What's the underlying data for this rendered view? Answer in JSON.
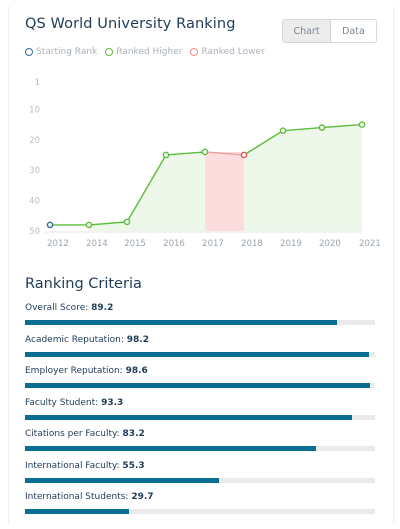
{
  "header": {
    "title": "QS World University Ranking"
  },
  "view_toggle": {
    "chart_label": "Chart",
    "data_label": "Data",
    "selected": "Chart"
  },
  "legend": [
    {
      "label": "Starting Rank",
      "color": "#2b6e8f"
    },
    {
      "label": "Ranked Higher",
      "color": "#5bbd3a"
    },
    {
      "label": "Ranked Lower",
      "color": "#f08a8a"
    }
  ],
  "chart_data": {
    "type": "line",
    "x": [
      "2012",
      "2014",
      "2015",
      "2016",
      "2017",
      "2018",
      "2019",
      "2020",
      "2021"
    ],
    "y": [
      48,
      48,
      47,
      25,
      24,
      25,
      17,
      16,
      15
    ],
    "y_ticks": [
      "1",
      "10",
      "20",
      "30",
      "40",
      "50"
    ],
    "ylim": [
      50,
      1
    ],
    "y_inverted": true,
    "colors": {
      "higher": "#5bbd3a",
      "lower": "#f08a8a",
      "start": "#2b6e8f",
      "higher_fill": "#eef8ea",
      "lower_fill": "#fcdcdc"
    },
    "lower_segments": [
      [
        4,
        5
      ]
    ]
  },
  "criteria": {
    "title": "Ranking Criteria",
    "items": [
      {
        "label": "Overall Score:",
        "value": "89.2",
        "pct": 89.2
      },
      {
        "label": "Academic Reputation:",
        "value": "98.2",
        "pct": 98.2
      },
      {
        "label": "Employer Reputation:",
        "value": "98.6",
        "pct": 98.6
      },
      {
        "label": "Faculty Student:",
        "value": "93.3",
        "pct": 93.3
      },
      {
        "label": "Citations per Faculty:",
        "value": "83.2",
        "pct": 83.2
      },
      {
        "label": "International Faculty:",
        "value": "55.3",
        "pct": 55.3
      },
      {
        "label": "International Students:",
        "value": "29.7",
        "pct": 29.7
      }
    ]
  }
}
